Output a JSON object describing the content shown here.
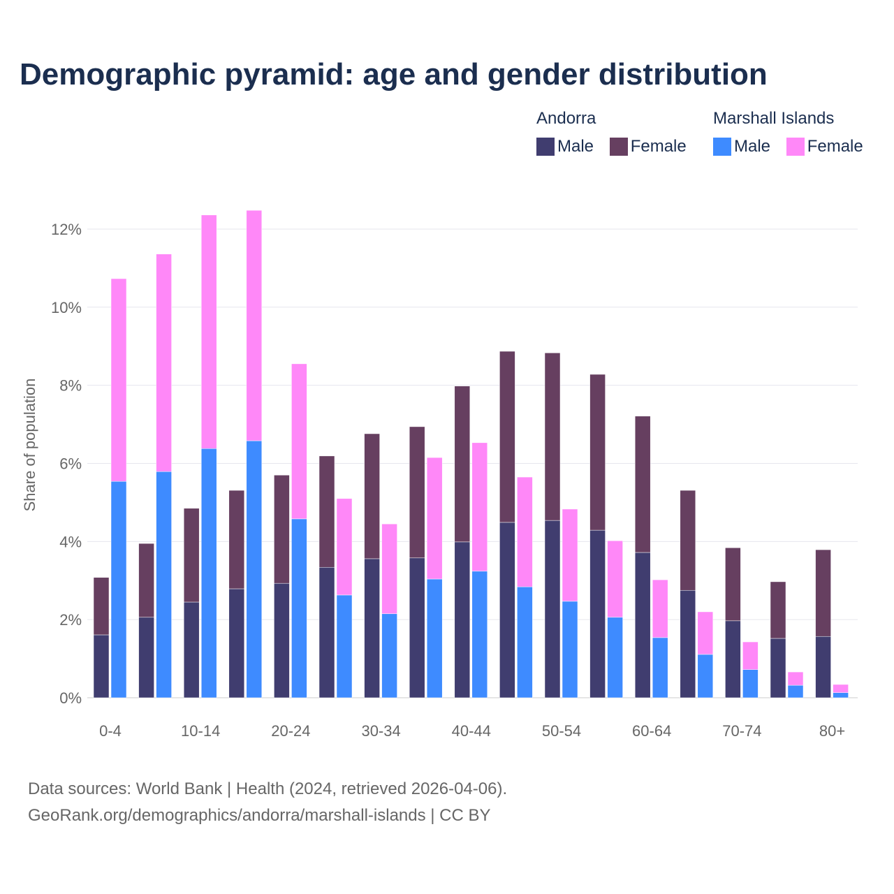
{
  "chart_data": {
    "type": "bar",
    "title": "Demographic pyramid: age and gender distribution",
    "ylabel": "Share of population",
    "xlabel": "",
    "ylim": [
      0,
      12.5
    ],
    "yticks": [
      "0%",
      "2%",
      "4%",
      "6%",
      "8%",
      "10%",
      "12%"
    ],
    "grid": true,
    "legend_position": "top-right",
    "categories": [
      "0-4",
      "5-9",
      "10-14",
      "15-19",
      "20-24",
      "25-29",
      "30-34",
      "35-39",
      "40-44",
      "45-49",
      "50-54",
      "55-59",
      "60-64",
      "65-69",
      "70-74",
      "75-79",
      "80+"
    ],
    "xtick_labels": [
      "0-4",
      "",
      "10-14",
      "",
      "20-24",
      "",
      "30-34",
      "",
      "40-44",
      "",
      "50-54",
      "",
      "60-64",
      "",
      "70-74",
      "",
      "80+"
    ],
    "countries": [
      {
        "name": "Andorra",
        "series": [
          {
            "name": "Male",
            "color": "#403d6f",
            "values": [
              1.61,
              2.06,
              2.45,
              2.79,
              2.93,
              3.34,
              3.56,
              3.58,
              3.99,
              4.49,
              4.54,
              4.29,
              3.72,
              2.75,
              1.97,
              1.52,
              1.57
            ]
          },
          {
            "name": "Female",
            "color": "#663f60",
            "values": [
              1.47,
              1.89,
              2.4,
              2.52,
              2.77,
              2.85,
              3.2,
              3.36,
              3.99,
              4.38,
              4.29,
              3.99,
              3.49,
              2.56,
              1.87,
              1.45,
              2.22
            ]
          }
        ]
      },
      {
        "name": "Marshall Islands",
        "series": [
          {
            "name": "Male",
            "color": "#3e8bff",
            "values": [
              5.54,
              5.79,
              6.38,
              6.58,
              4.58,
              2.63,
              2.15,
              3.04,
              3.24,
              2.84,
              2.47,
              2.06,
              1.54,
              1.11,
              0.72,
              0.32,
              0.13
            ]
          },
          {
            "name": "Female",
            "color": "#ff88f8",
            "values": [
              5.19,
              5.57,
              5.98,
              5.9,
              3.97,
              2.47,
              2.3,
              3.11,
              3.29,
              2.81,
              2.36,
              1.96,
              1.48,
              1.09,
              0.71,
              0.34,
              0.21
            ]
          }
        ]
      }
    ]
  },
  "footer": {
    "line1": "Data sources: World Bank | Health (2024, retrieved 2026-04-06).",
    "line2": "GeoRank.org/demographics/andorra/marshall-islands | CC BY"
  }
}
